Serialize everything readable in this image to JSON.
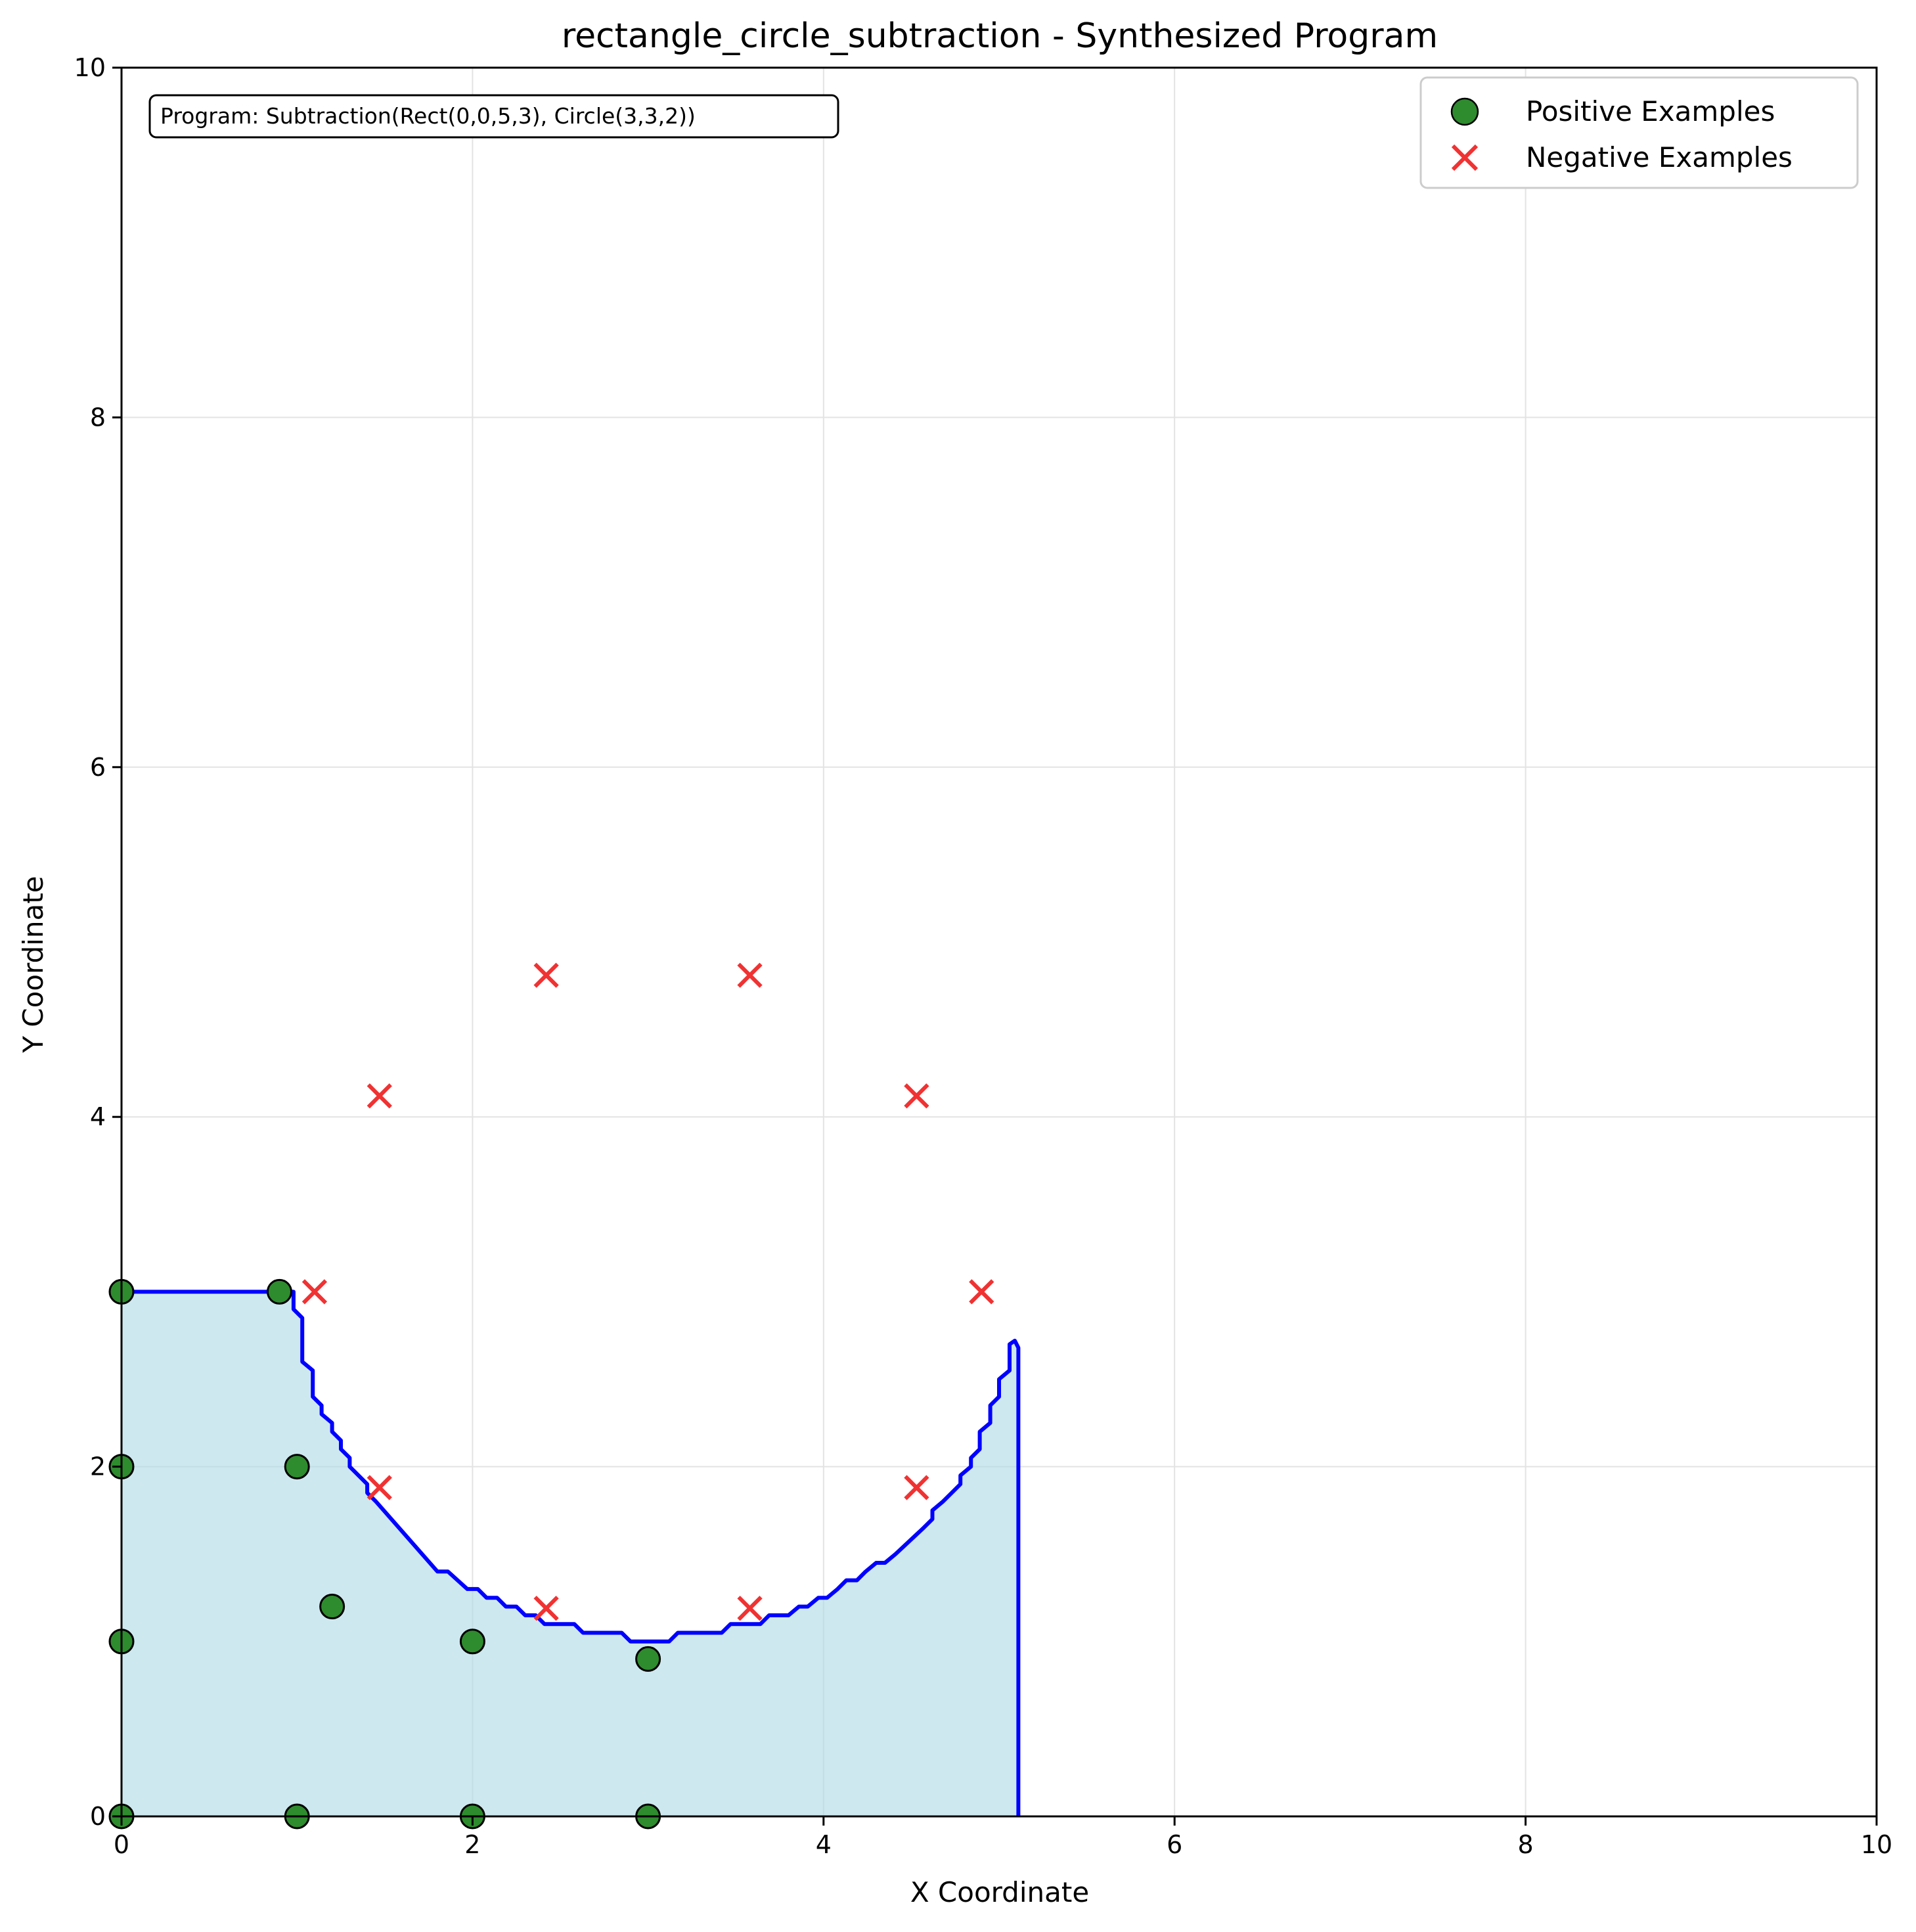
{
  "chart_data": {
    "type": "scatter",
    "title": "rectangle_circle_subtraction - Synthesized Program",
    "xlabel": "X Coordinate",
    "ylabel": "Y Coordinate",
    "xlim": [
      0,
      10
    ],
    "ylim": [
      0,
      10
    ],
    "xticks": [
      "0",
      "2",
      "4",
      "6",
      "8",
      "10"
    ],
    "yticks": [
      "0",
      "2",
      "4",
      "6",
      "8",
      "10"
    ],
    "grid": true,
    "legend_position": "top-right",
    "annotation": "Program: Subtraction(Rect(0,0,5,3), Circle(3,3,2))",
    "series": [
      {
        "name": "Positive Examples",
        "marker": "circle",
        "color": "#2e8b2e",
        "points": [
          [
            0,
            0
          ],
          [
            1,
            0
          ],
          [
            2,
            0
          ],
          [
            3,
            0
          ],
          [
            0,
            1
          ],
          [
            2,
            1
          ],
          [
            3,
            0.9
          ],
          [
            1.2,
            1.2
          ],
          [
            0,
            2
          ],
          [
            1,
            2
          ],
          [
            0,
            3
          ],
          [
            0.9,
            3
          ]
        ]
      },
      {
        "name": "Negative Examples",
        "marker": "x",
        "color": "#f03232",
        "points": [
          [
            1.1,
            3
          ],
          [
            4.9,
            3
          ],
          [
            1.47,
            4.12
          ],
          [
            4.53,
            4.12
          ],
          [
            2.42,
            4.81
          ],
          [
            3.58,
            4.81
          ],
          [
            1.47,
            1.88
          ],
          [
            4.53,
            1.88
          ],
          [
            2.42,
            1.19
          ],
          [
            3.58,
            1.19
          ]
        ]
      }
    ],
    "region": {
      "fill": "#add8e6",
      "line": "#0000ff",
      "boundary": [
        [
          0,
          3
        ],
        [
          0.98,
          3
        ],
        [
          0.98,
          2.9
        ],
        [
          1.03,
          2.85
        ],
        [
          1.03,
          2.6
        ],
        [
          1.09,
          2.55
        ],
        [
          1.09,
          2.4
        ],
        [
          1.14,
          2.35
        ],
        [
          1.14,
          2.3
        ],
        [
          1.2,
          2.25
        ],
        [
          1.2,
          2.2
        ],
        [
          1.25,
          2.15
        ],
        [
          1.25,
          2.1
        ],
        [
          1.3,
          2.05
        ],
        [
          1.3,
          2.0
        ],
        [
          1.4,
          1.9
        ],
        [
          1.4,
          1.85
        ],
        [
          1.45,
          1.8
        ],
        [
          1.8,
          1.4
        ],
        [
          1.86,
          1.4
        ],
        [
          1.97,
          1.3
        ],
        [
          2.03,
          1.3
        ],
        [
          2.08,
          1.25
        ],
        [
          2.14,
          1.25
        ],
        [
          2.19,
          1.2
        ],
        [
          2.25,
          1.2
        ],
        [
          2.3,
          1.15
        ],
        [
          2.36,
          1.15
        ],
        [
          2.41,
          1.1
        ],
        [
          2.58,
          1.1
        ],
        [
          2.63,
          1.05
        ],
        [
          2.85,
          1.05
        ],
        [
          2.9,
          1.0
        ],
        [
          3.12,
          1.0
        ],
        [
          3.17,
          1.05
        ],
        [
          3.42,
          1.05
        ],
        [
          3.47,
          1.1
        ],
        [
          3.64,
          1.1
        ],
        [
          3.69,
          1.15
        ],
        [
          3.8,
          1.15
        ],
        [
          3.86,
          1.2
        ],
        [
          3.91,
          1.2
        ],
        [
          3.97,
          1.25
        ],
        [
          4.02,
          1.25
        ],
        [
          4.08,
          1.3
        ],
        [
          4.13,
          1.35
        ],
        [
          4.19,
          1.35
        ],
        [
          4.24,
          1.4
        ],
        [
          4.3,
          1.45
        ],
        [
          4.35,
          1.45
        ],
        [
          4.41,
          1.5
        ],
        [
          4.57,
          1.65
        ],
        [
          4.62,
          1.7
        ],
        [
          4.62,
          1.75
        ],
        [
          4.68,
          1.8
        ],
        [
          4.73,
          1.85
        ],
        [
          4.78,
          1.9
        ],
        [
          4.78,
          1.95
        ],
        [
          4.84,
          2.0
        ],
        [
          4.84,
          2.05
        ],
        [
          4.89,
          2.1
        ],
        [
          4.89,
          2.2
        ],
        [
          4.95,
          2.25
        ],
        [
          4.95,
          2.35
        ],
        [
          5.0,
          2.4
        ],
        [
          5.0,
          2.5
        ],
        [
          5.06,
          2.55
        ],
        [
          5.06,
          2.7
        ],
        [
          5.09,
          2.72
        ],
        [
          5.11,
          2.68
        ],
        [
          5.11,
          0
        ],
        [
          0,
          0
        ]
      ]
    }
  }
}
